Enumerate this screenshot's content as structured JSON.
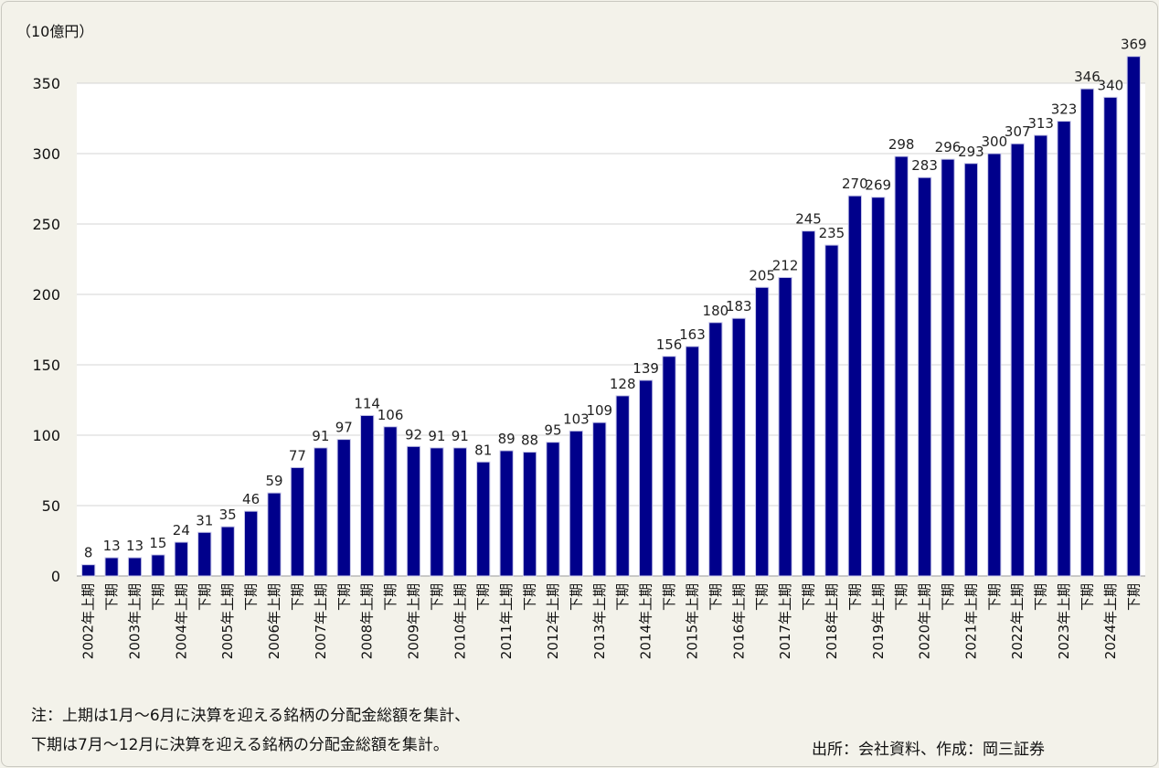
{
  "chart_data": {
    "type": "bar",
    "unit_label": "（10億円）",
    "ylim": [
      0,
      350
    ],
    "yticks": [
      0,
      50,
      100,
      150,
      200,
      250,
      300,
      350
    ],
    "grid": true,
    "bar_color": "#00008b",
    "categories": [
      "2002年上期",
      "下期",
      "2003年上期",
      "下期",
      "2004年上期",
      "下期",
      "2005年上期",
      "下期",
      "2006年上期",
      "下期",
      "2007年上期",
      "下期",
      "2008年上期",
      "下期",
      "2009年上期",
      "下期",
      "2010年上期",
      "下期",
      "2011年上期",
      "下期",
      "2012年上期",
      "下期",
      "2013年上期",
      "下期",
      "2014年上期",
      "下期",
      "2015年上期",
      "下期",
      "2016年上期",
      "下期",
      "2017年上期",
      "下期",
      "2018年上期",
      "下期",
      "2019年上期",
      "下期",
      "2020年上期",
      "下期",
      "2021年上期",
      "下期",
      "2022年上期",
      "下期",
      "2023年上期",
      "下期",
      "2024年上期",
      "下期"
    ],
    "values": [
      8,
      13,
      13,
      15,
      24,
      31,
      35,
      46,
      59,
      77,
      91,
      97,
      114,
      106,
      92,
      91,
      91,
      81,
      89,
      88,
      95,
      103,
      109,
      128,
      139,
      156,
      163,
      180,
      183,
      205,
      212,
      245,
      235,
      270,
      269,
      298,
      283,
      296,
      293,
      300,
      307,
      313,
      323,
      346,
      340,
      369
    ]
  },
  "notes": {
    "line1": "注：上期は1月～6月に決算を迎える銘柄の分配金総額を集計、",
    "line2": "下期は7月～12月に決算を迎える銘柄の分配金総額を集計。",
    "source": "出所：会社資料、作成：岡三証券"
  }
}
